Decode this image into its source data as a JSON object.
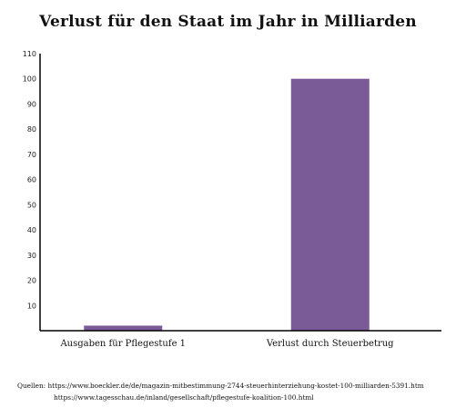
{
  "chart_data": {
    "type": "bar",
    "title": "Verlust für den Staat im Jahr in Milliarden",
    "categories": [
      "Ausgaben für Pflegestufe 1",
      "Verlust durch Steuerbetrug"
    ],
    "values": [
      2,
      100
    ],
    "ylim": [
      0,
      110
    ],
    "yticks": [
      10,
      20,
      30,
      40,
      50,
      60,
      70,
      80,
      90,
      100,
      110
    ],
    "xlabel": "",
    "ylabel": "",
    "grid": false,
    "bar_color": "#7a5a97"
  },
  "sources": {
    "line1": "Quellen: https://www.boeckler.de/de/magazin-mitbestimmung-2744-steuerhinterziehung-kostet-100-milliarden-5391.htm",
    "line2": "https://www.tagesschau.de/inland/gesellschaft/pflegestufe-koalition-100.html"
  }
}
